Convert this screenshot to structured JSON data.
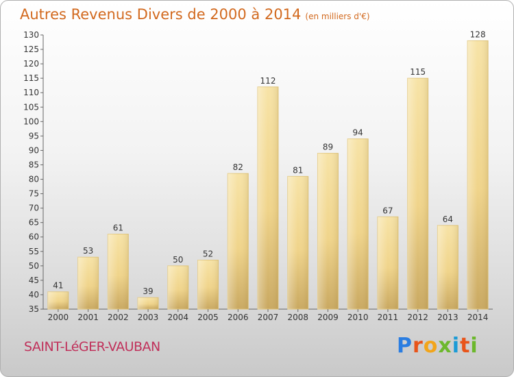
{
  "title": {
    "main": "Autres Revenus Divers de 2000 à 2014",
    "sub": "(en milliers d'€)"
  },
  "commune": "SAINT-LéGER-VAUBAN",
  "brand": {
    "letters": [
      "P",
      "r",
      "o",
      "x",
      "i",
      "t",
      "i"
    ],
    "colors": [
      "#2a7de1",
      "#e8541a",
      "#f2a51a",
      "#6cb82c",
      "#1c9bd6",
      "#e8541a",
      "#6cb82c"
    ]
  },
  "chart_data": {
    "type": "bar",
    "title": "Autres Revenus Divers de 2000 à 2014",
    "subtitle": "(en milliers d'€)",
    "xlabel": "",
    "ylabel": "",
    "categories": [
      "2000",
      "2001",
      "2002",
      "2003",
      "2004",
      "2005",
      "2006",
      "2007",
      "2008",
      "2009",
      "2010",
      "2011",
      "2012",
      "2013",
      "2014"
    ],
    "values": [
      41,
      53,
      61,
      39,
      50,
      52,
      82,
      112,
      81,
      89,
      94,
      67,
      115,
      64,
      128
    ],
    "ylim": [
      35,
      130
    ],
    "yticks": [
      35,
      40,
      45,
      50,
      55,
      60,
      65,
      70,
      75,
      80,
      85,
      90,
      95,
      100,
      105,
      110,
      115,
      120,
      125,
      130
    ],
    "grid": false,
    "bar_color": "#f0d48a"
  }
}
